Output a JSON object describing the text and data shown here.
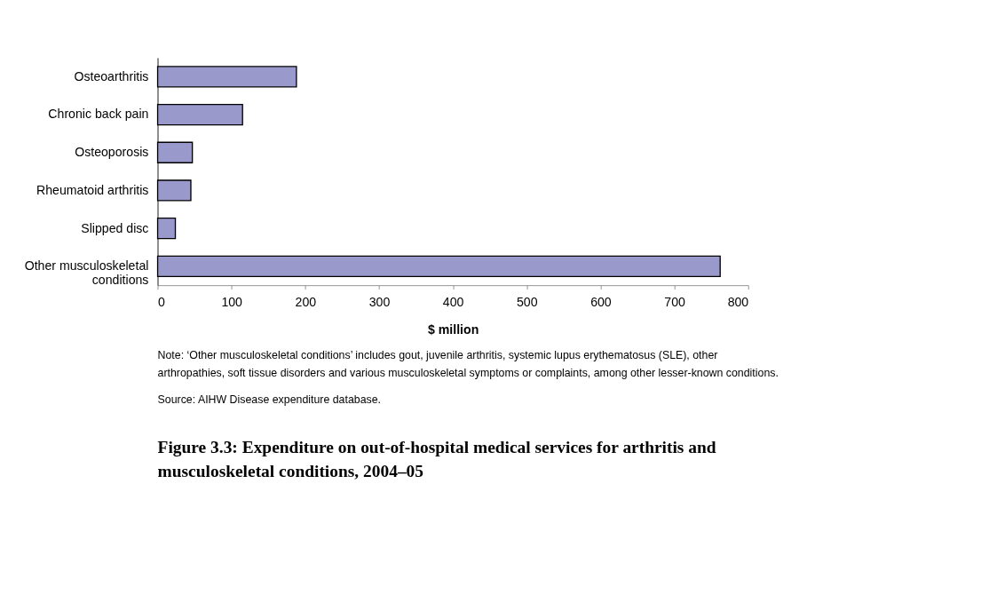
{
  "chart_data": {
    "type": "bar",
    "orientation": "horizontal",
    "title": "Figure 3.3: Expenditure on out-of-hospital medical services for arthritis and musculoskeletal conditions, 2004–05",
    "xlabel": "$ million",
    "categories": [
      "Osteoarthritis",
      "Chronic back pain",
      "Osteoporosis",
      "Rheumatoid arthritis",
      "Slipped disc",
      "Other musculoskeletal conditions"
    ],
    "values": [
      188,
      115,
      47,
      45,
      24,
      762
    ],
    "color": "#9999cc",
    "xlim": [
      0,
      800
    ],
    "xticks": [
      0,
      100,
      200,
      300,
      400,
      500,
      600,
      700,
      800
    ],
    "grid": false,
    "annotations": [
      "Note: ‘Other musculoskeletal conditions’ includes gout, juvenile arthritis, systemic lupus erythematosus (SLE), other arthropathies, soft tissue disorders and various musculoskeletal symptoms or complaints, among other lesser-known conditions.",
      "Source: AIHW Disease expenditure database."
    ]
  }
}
